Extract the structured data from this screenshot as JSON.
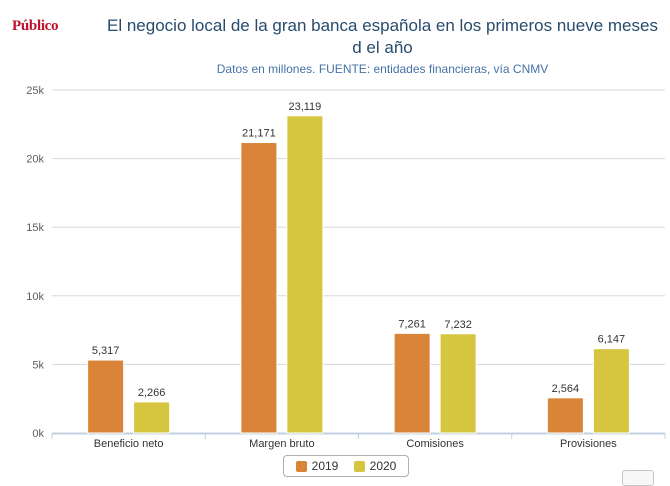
{
  "header": {
    "logo": "Público",
    "title": "El negocio local de la gran banca española en los primeros nueve meses d el año",
    "subtitle": "Datos en millones. FUENTE: entidades financieras, vía CNMV"
  },
  "chart_data": {
    "type": "bar",
    "categories": [
      "Beneficio neto",
      "Margen bruto",
      "Comisiones",
      "Provisiones"
    ],
    "series": [
      {
        "name": "2019",
        "color": "#d98438",
        "values": [
          5317,
          21171,
          7261,
          2564
        ],
        "labels": [
          "5,317",
          "21,171",
          "7,261",
          "2,564"
        ]
      },
      {
        "name": "2020",
        "color": "#d6c53f",
        "values": [
          2266,
          23119,
          7232,
          6147
        ],
        "labels": [
          "2,266",
          "23,119",
          "7,232",
          "6,147"
        ]
      }
    ],
    "ylim": [
      0,
      25000
    ],
    "yticks": [
      0,
      5000,
      10000,
      15000,
      20000,
      25000
    ],
    "ytick_labels": [
      "0k",
      "5k",
      "10k",
      "15k",
      "20k",
      "25k"
    ],
    "grid": true,
    "legend_position": "bottom-center"
  }
}
